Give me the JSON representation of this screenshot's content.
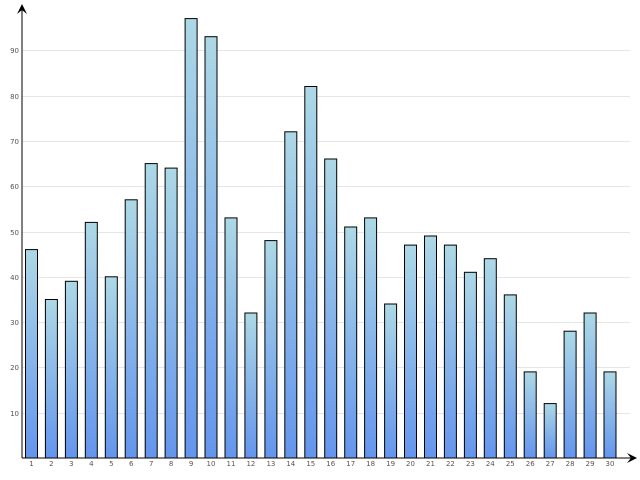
{
  "chart_data": {
    "type": "bar",
    "categories": [
      "1",
      "2",
      "3",
      "4",
      "5",
      "6",
      "7",
      "8",
      "9",
      "10",
      "11",
      "12",
      "13",
      "14",
      "15",
      "16",
      "17",
      "18",
      "19",
      "20",
      "21",
      "22",
      "23",
      "24",
      "25",
      "26",
      "27",
      "28",
      "29",
      "30"
    ],
    "values": [
      46,
      35,
      39,
      52,
      40,
      57,
      65,
      64,
      97,
      93,
      53,
      32,
      48,
      72,
      82,
      66,
      51,
      53,
      34,
      47,
      49,
      47,
      41,
      44,
      36,
      19,
      12,
      28,
      32,
      19
    ],
    "title": "",
    "xlabel": "",
    "ylabel": "",
    "ylim": [
      0,
      100
    ],
    "yticks": [
      10,
      20,
      30,
      40,
      50,
      60,
      70,
      80,
      90
    ],
    "ytick_labels": [
      "10",
      "20",
      "30",
      "40",
      "50",
      "60",
      "70",
      "80",
      "90"
    ],
    "grid": "horizontal",
    "legend": "none",
    "colors": {
      "bar_top": "#add8e6",
      "bar_bottom": "#6495ed",
      "bar_stroke": "#000000",
      "grid": "#e6e6e6",
      "axis": "#000000"
    }
  }
}
